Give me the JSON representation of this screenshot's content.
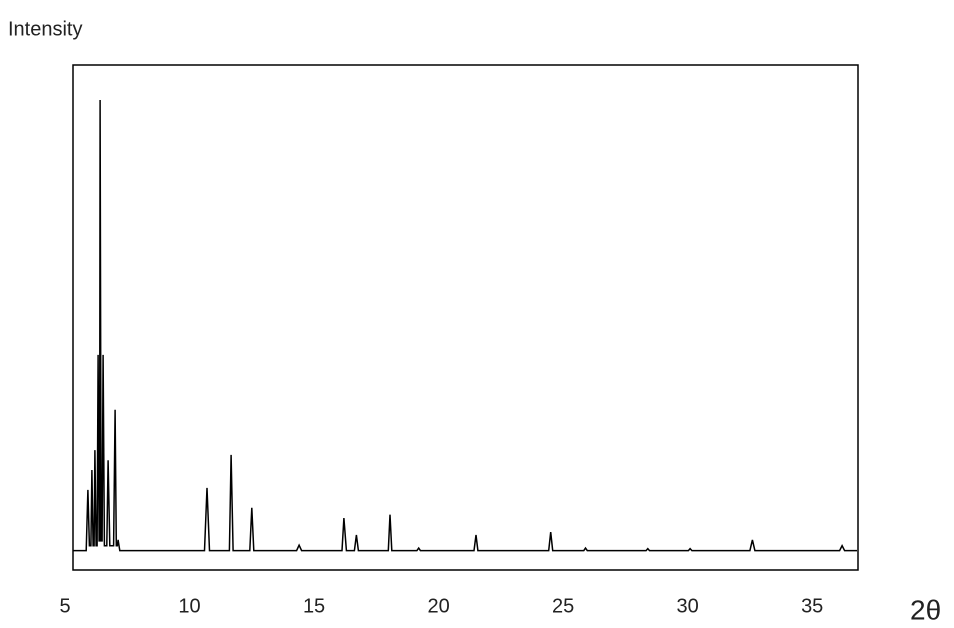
{
  "chart_data": {
    "type": "line",
    "y_label": "Intensity",
    "x_label": "2θ",
    "xlim": [
      5,
      37
    ],
    "xticks": [
      5,
      10,
      15,
      20,
      25,
      30,
      35
    ],
    "ylim": [
      -4,
      100
    ],
    "color": "#000000",
    "x": [
      5.3,
      5.85,
      5.92,
      5.98,
      6.04,
      6.08,
      6.13,
      6.17,
      6.2,
      6.25,
      6.29,
      6.33,
      6.37,
      6.39,
      6.41,
      6.45,
      6.49,
      6.53,
      6.58,
      6.68,
      6.73,
      6.8,
      6.95,
      7.01,
      7.06,
      7.1,
      7.13,
      7.2,
      10.6,
      10.7,
      10.8,
      11.6,
      11.67,
      11.75,
      12.42,
      12.5,
      12.58,
      14.3,
      14.4,
      14.5,
      16.12,
      16.2,
      16.3,
      16.62,
      16.7,
      16.78,
      17.98,
      18.05,
      18.12,
      19.13,
      19.2,
      19.27,
      21.42,
      21.5,
      21.58,
      24.42,
      24.5,
      24.58,
      25.83,
      25.9,
      25.97,
      28.33,
      28.4,
      28.47,
      30.03,
      30.1,
      30.17,
      32.5,
      32.6,
      32.7,
      36.1,
      36.2,
      36.3,
      36.8
    ],
    "values": [
      0,
      0,
      12.5,
      1,
      1,
      16.6,
      1,
      1,
      20.7,
      1,
      1,
      40.3,
      2,
      2,
      92.8,
      2,
      2,
      40.3,
      1,
      1,
      18.6,
      1,
      1,
      29,
      1,
      1,
      2.2,
      0,
      0,
      12.9,
      0,
      0,
      19.7,
      0,
      0,
      8.8,
      0,
      0,
      1.1,
      0,
      0,
      6.7,
      0,
      0,
      3.2,
      0,
      0,
      7.4,
      0,
      0,
      0.5,
      0,
      0,
      3.2,
      0,
      0,
      3.8,
      0,
      0,
      0.5,
      0,
      0,
      0.4,
      0,
      0,
      0.4,
      0,
      0,
      2.2,
      0,
      0,
      1,
      0,
      0
    ]
  }
}
